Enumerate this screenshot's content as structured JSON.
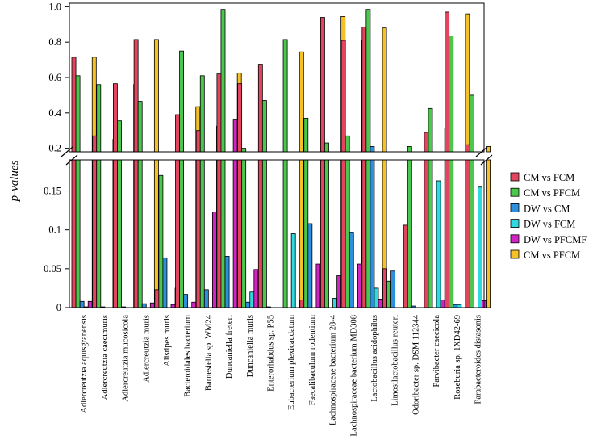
{
  "chart_data": {
    "type": "bar",
    "ylabel": "p-values",
    "y_break": true,
    "upper_panel": {
      "ylim": [
        0.18,
        1.02
      ],
      "ticks": [
        0.2,
        0.4,
        0.6,
        0.8,
        1.0
      ],
      "tick_labels": [
        "0.2",
        "0.4",
        "0.6",
        "0.8",
        "1.0"
      ]
    },
    "lower_panel": {
      "ylim": [
        0,
        0.19
      ],
      "ticks": [
        0,
        0.05,
        0.1,
        0.15
      ],
      "tick_labels": [
        "0",
        "0.05",
        "0.1",
        "0.15"
      ]
    },
    "categories": [
      "Adlercreutzia aquisgranensis",
      "Adlercreutzia caecimuris",
      "Adlercreutzia mucosicola",
      "Adlercreutzia muris",
      "Alistipes muris",
      "Bacteroidales bacterium",
      "Barnesiella sp. WM24",
      "Duncaniella freteri",
      "Duncaniella muris",
      "Enterorhabdus sp. P55",
      "Eubacterium plexicaudatum",
      "Faecalibaculum rodentium",
      "Lachnospiraceae bacterium 28-4",
      "Lachnospiraceae bacterium MD308",
      "Lactobacillus acidophilus",
      "Limosilactobacillus reuteri",
      "Odoribacter sp. DSM 112344",
      "Parvibacter caecicola",
      "Roseburia sp. 1XD42-69",
      "Parabacteroides distasonis"
    ],
    "legend": [
      {
        "label": "CM vs FCM",
        "color": "#e4455e"
      },
      {
        "label": "CM vs PFCM",
        "color": "#4ac74c"
      },
      {
        "label": "DW vs CM",
        "color": "#2d8fde"
      },
      {
        "label": "DW vs FCM",
        "color": "#2fd9df"
      },
      {
        "label": "DW vs PFCMF",
        "color": "#d224c4"
      },
      {
        "label": "CM vs PFCM",
        "color": "#f6c127"
      }
    ],
    "series": [
      {
        "name": "CM vs FCM",
        "color": "#e4455e",
        "values": [
          0.715,
          0.27,
          0.565,
          0.815,
          0.023,
          0.39,
          0.3,
          0.62,
          0.565,
          0.675,
          0.0,
          0.01,
          0.94,
          0.81,
          0.885,
          0.05,
          0.106,
          0.29,
          0.97,
          0.22
        ]
      },
      {
        "name": "CM vs PFCM",
        "color": "#4ac74c",
        "values": [
          0.61,
          0.56,
          0.355,
          0.465,
          0.17,
          0.75,
          0.61,
          0.985,
          0.2,
          0.47,
          0.815,
          0.37,
          0.23,
          0.27,
          0.985,
          0.034,
          0.21,
          0.425,
          0.835,
          0.5
        ]
      },
      {
        "name": "DW vs CM",
        "color": "#2d8fde",
        "values": [
          0.008,
          0.001,
          0.001,
          0.005,
          0.064,
          0.017,
          0.023,
          0.066,
          0.007,
          0.001,
          0.0,
          0.108,
          0.0,
          0.097,
          0.21,
          0.047,
          0.002,
          0.0,
          0.004,
          0.0
        ]
      },
      {
        "name": "DW vs FCM",
        "color": "#2fd9df",
        "values": [
          0.001,
          0.0,
          0.0,
          0.0,
          0.0,
          0.0,
          0.0,
          0.0,
          0.02,
          0.0,
          0.095,
          0.0,
          0.012,
          0.0,
          0.025,
          0.0,
          0.0,
          0.163,
          0.004,
          0.155
        ]
      },
      {
        "name": "DW vs PFCMF",
        "color": "#d224c4",
        "values": [
          0.008,
          0.0,
          0.0,
          0.006,
          0.004,
          0.007,
          0.123,
          0.36,
          0.049,
          0.0,
          0.0,
          0.056,
          0.041,
          0.056,
          0.011,
          0.0,
          0.0,
          0.01,
          0.0,
          0.009
        ]
      },
      {
        "name": "CM vs PFCM",
        "color": "#f6c127",
        "values": [
          0.715,
          0.25,
          0.56,
          0.815,
          0.025,
          0.435,
          0.325,
          0.625,
          0.0,
          0.0,
          0.745,
          0.009,
          0.945,
          0.81,
          0.88,
          0.04,
          0.104,
          0.31,
          0.96,
          0.21
        ]
      }
    ]
  }
}
